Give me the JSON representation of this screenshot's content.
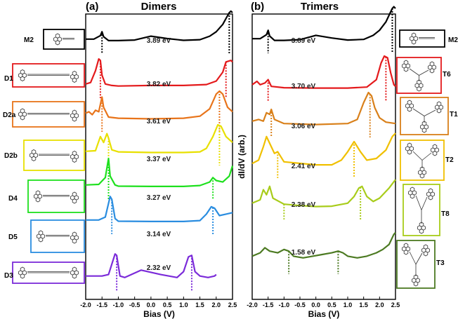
{
  "chart_data": [
    {
      "type": "line",
      "panel": "(a)",
      "title": "Dimers",
      "xlabel": "Bias (V)",
      "ylabel": "",
      "xlim": [
        -2.0,
        2.5
      ],
      "xticks": [
        "-2.0",
        "-1.5",
        "-1.0",
        "-0.5",
        "0.0",
        "0.5",
        "1.0",
        "1.5",
        "2.0",
        "2.5"
      ],
      "series": [
        {
          "name": "M2",
          "color": "#000000",
          "gap": "3.89 eV",
          "vbm": -1.5,
          "cbm": 2.4,
          "x": [
            -2.0,
            -1.75,
            -1.55,
            -1.5,
            -1.45,
            -1.3,
            -1.0,
            -0.5,
            0.0,
            0.5,
            1.0,
            1.5,
            1.8,
            2.0,
            2.2,
            2.3,
            2.4,
            2.45,
            2.5
          ],
          "y": [
            0.1,
            0.1,
            0.22,
            0.35,
            0.18,
            0.05,
            0.05,
            0.07,
            0.2,
            0.12,
            0.06,
            0.08,
            0.2,
            0.35,
            0.6,
            0.8,
            1.0,
            1.05,
            1.0
          ]
        },
        {
          "name": "D1",
          "color": "#e41a1c",
          "gap": "3.82 eV",
          "vbm": -1.55,
          "cbm": 2.3,
          "x": [
            -2.0,
            -1.85,
            -1.7,
            -1.6,
            -1.55,
            -1.5,
            -1.4,
            -1.2,
            -1.0,
            0.0,
            1.0,
            1.7,
            2.0,
            2.2,
            2.3,
            2.45,
            2.5
          ],
          "y": [
            0.1,
            0.15,
            0.55,
            0.95,
            0.9,
            0.4,
            0.1,
            0.05,
            0.03,
            0.05,
            0.05,
            0.08,
            0.2,
            0.5,
            0.85,
            0.9,
            0.85
          ]
        },
        {
          "name": "D2a",
          "color": "#e8741a",
          "gap": "3.61 eV",
          "vbm": -1.5,
          "cbm": 2.1,
          "x": [
            -2.0,
            -1.9,
            -1.8,
            -1.7,
            -1.6,
            -1.5,
            -1.45,
            -1.3,
            -1.0,
            0.0,
            1.0,
            1.5,
            1.8,
            2.0,
            2.1,
            2.2,
            2.35,
            2.5
          ],
          "y": [
            0.25,
            0.3,
            0.2,
            0.35,
            0.3,
            0.8,
            0.45,
            0.12,
            0.08,
            0.06,
            0.08,
            0.15,
            0.4,
            0.9,
            1.0,
            0.9,
            0.45,
            0.3
          ]
        },
        {
          "name": "D2b",
          "color": "#e8e000",
          "gap": "3.37 eV",
          "vbm": -1.3,
          "cbm": 2.1,
          "x": [
            -2.0,
            -1.7,
            -1.55,
            -1.45,
            -1.35,
            -1.3,
            -1.2,
            -1.0,
            0.0,
            1.0,
            1.5,
            1.7,
            1.9,
            2.05,
            2.15,
            2.3,
            2.5
          ],
          "y": [
            0.1,
            0.12,
            0.6,
            0.4,
            0.7,
            0.55,
            0.15,
            0.08,
            0.06,
            0.06,
            0.08,
            0.2,
            0.6,
            1.0,
            0.95,
            0.6,
            0.4
          ]
        },
        {
          "name": "D4",
          "color": "#1ee01e",
          "gap": "3.27 eV",
          "vbm": -1.3,
          "cbm": 1.9,
          "x": [
            -2.0,
            -1.6,
            -1.4,
            -1.3,
            -1.25,
            -1.1,
            -1.0,
            0.0,
            1.0,
            1.5,
            1.8,
            1.9,
            2.0,
            2.2,
            2.4,
            2.5
          ],
          "y": [
            0.1,
            0.12,
            0.35,
            1.0,
            0.4,
            0.1,
            0.06,
            0.05,
            0.05,
            0.08,
            0.2,
            0.35,
            0.25,
            0.2,
            0.4,
            0.75
          ]
        },
        {
          "name": "D5",
          "color": "#2a8de0",
          "gap": "3.14 eV",
          "vbm": -1.2,
          "cbm": 1.9,
          "x": [
            -2.0,
            -1.6,
            -1.4,
            -1.25,
            -1.2,
            -1.1,
            -1.0,
            0.0,
            1.0,
            1.5,
            1.7,
            1.85,
            1.95,
            2.1,
            2.3,
            2.5
          ],
          "y": [
            0.1,
            0.1,
            0.2,
            0.9,
            0.8,
            0.15,
            0.06,
            0.05,
            0.05,
            0.08,
            0.3,
            0.55,
            0.5,
            0.25,
            0.3,
            0.35
          ]
        },
        {
          "name": "D3",
          "color": "#7b2bd9",
          "gap": "2.32 eV",
          "vbm": -1.05,
          "cbm": 1.25,
          "x": [
            -2.0,
            -1.5,
            -1.3,
            -1.1,
            -1.05,
            -0.95,
            -0.8,
            -0.3,
            0.3,
            0.8,
            1.0,
            1.15,
            1.25,
            1.35,
            1.5,
            1.75,
            1.95,
            2.0
          ],
          "y": [
            0.15,
            0.15,
            0.2,
            0.9,
            0.85,
            0.15,
            0.1,
            0.35,
            0.2,
            0.1,
            0.3,
            0.8,
            0.85,
            0.3,
            0.15,
            0.1,
            0.15,
            0.2
          ]
        }
      ]
    },
    {
      "type": "line",
      "panel": "(b)",
      "title": "Trimers",
      "xlabel": "Bias (V)",
      "ylabel": "dI/dV (arb.)",
      "xlim": [
        -2.0,
        2.5
      ],
      "xticks": [
        "-2.0",
        "-1.5",
        "-1.0",
        "-0.5",
        "0.0",
        "0.5",
        "1.0",
        "1.5",
        "2.0",
        "2.5"
      ],
      "series": [
        {
          "name": "M2",
          "color": "#000000",
          "gap": "3.89 eV",
          "vbm": -1.5,
          "cbm": 2.4,
          "x": [
            -2.0,
            -1.75,
            -1.55,
            -1.5,
            -1.45,
            -1.3,
            -1.0,
            -0.5,
            0.0,
            0.5,
            1.0,
            1.5,
            1.8,
            2.0,
            2.2,
            2.3,
            2.4,
            2.45,
            2.5
          ],
          "y": [
            0.1,
            0.1,
            0.22,
            0.35,
            0.18,
            0.05,
            0.05,
            0.07,
            0.2,
            0.12,
            0.06,
            0.08,
            0.2,
            0.35,
            0.6,
            0.8,
            1.0,
            1.05,
            1.0
          ]
        },
        {
          "name": "T6",
          "color": "#e41a1c",
          "gap": "3.70 eV",
          "vbm": -1.5,
          "cbm": 2.2,
          "x": [
            -2.0,
            -1.85,
            -1.75,
            -1.6,
            -1.5,
            -1.4,
            -1.0,
            0.0,
            1.0,
            1.6,
            1.9,
            2.05,
            2.15,
            2.25,
            2.35,
            2.45,
            2.5
          ],
          "y": [
            0.15,
            0.25,
            0.15,
            0.2,
            0.3,
            0.1,
            0.06,
            0.05,
            0.05,
            0.08,
            0.3,
            0.8,
            1.0,
            0.95,
            0.5,
            0.15,
            0.1
          ]
        },
        {
          "name": "T1",
          "color": "#d9801a",
          "gap": "3.06 eV",
          "vbm": -1.4,
          "cbm": 1.7,
          "x": [
            -2.0,
            -1.8,
            -1.65,
            -1.55,
            -1.45,
            -1.4,
            -1.3,
            -1.0,
            0.0,
            1.0,
            1.3,
            1.5,
            1.65,
            1.75,
            1.85,
            2.0,
            2.2,
            2.5
          ],
          "y": [
            0.15,
            0.2,
            0.15,
            0.4,
            0.35,
            0.5,
            0.2,
            0.08,
            0.05,
            0.08,
            0.2,
            0.7,
            1.0,
            0.9,
            0.55,
            0.25,
            0.12,
            0.08
          ]
        },
        {
          "name": "T2",
          "color": "#f0c000",
          "gap": "2.41 eV",
          "vbm": -1.2,
          "cbm": 1.2,
          "x": [
            -2.0,
            -1.8,
            -1.65,
            -1.55,
            -1.45,
            -1.3,
            -1.2,
            -1.0,
            0.0,
            0.5,
            0.8,
            1.0,
            1.2,
            1.4,
            1.6,
            1.9,
            2.2,
            2.4,
            2.5
          ],
          "y": [
            0.1,
            0.2,
            0.6,
            0.9,
            0.7,
            0.4,
            0.45,
            0.15,
            0.06,
            0.06,
            0.2,
            0.45,
            0.75,
            0.45,
            0.2,
            0.25,
            0.5,
            0.9,
            1.0
          ]
        },
        {
          "name": "T8",
          "color": "#a8cc1a",
          "gap": "2.38 eV",
          "vbm": -1.0,
          "cbm": 1.4,
          "x": [
            -2.0,
            -1.75,
            -1.65,
            -1.55,
            -1.45,
            -1.35,
            -1.0,
            -0.5,
            0.0,
            0.5,
            1.0,
            1.2,
            1.35,
            1.45,
            1.6,
            1.8,
            2.0,
            2.3,
            2.5
          ],
          "y": [
            0.15,
            0.25,
            0.55,
            0.4,
            0.65,
            0.3,
            0.12,
            0.08,
            0.05,
            0.06,
            0.15,
            0.35,
            0.6,
            0.65,
            0.35,
            0.2,
            0.3,
            0.6,
            0.85
          ]
        },
        {
          "name": "T3",
          "color": "#4c7a22",
          "gap": "1.58 eV",
          "vbm": -0.85,
          "cbm": 0.7,
          "x": [
            -2.0,
            -1.75,
            -1.6,
            -1.45,
            -1.2,
            -1.0,
            -0.85,
            -0.7,
            -0.4,
            -0.1,
            0.2,
            0.5,
            0.7,
            0.85,
            1.0,
            1.3,
            1.6,
            1.9,
            2.1,
            2.3,
            2.45,
            2.5
          ],
          "y": [
            0.2,
            0.3,
            0.45,
            0.35,
            0.3,
            0.4,
            0.35,
            0.2,
            0.15,
            0.2,
            0.25,
            0.3,
            0.35,
            0.3,
            0.2,
            0.15,
            0.2,
            0.3,
            0.4,
            0.55,
            0.85,
            0.9
          ]
        }
      ]
    }
  ],
  "molecule_icons": {
    "left": [
      {
        "name": "M2",
        "color": "#000000"
      },
      {
        "name": "D1",
        "color": "#e41a1c"
      },
      {
        "name": "D2a",
        "color": "#e8741a"
      },
      {
        "name": "D2b",
        "color": "#e8e000"
      },
      {
        "name": "D4",
        "color": "#1ee01e"
      },
      {
        "name": "D5",
        "color": "#2a8de0"
      },
      {
        "name": "D3",
        "color": "#7b2bd9"
      }
    ],
    "right": [
      {
        "name": "M2",
        "color": "#000000"
      },
      {
        "name": "T6",
        "color": "#e41a1c"
      },
      {
        "name": "T1",
        "color": "#d9801a"
      },
      {
        "name": "T2",
        "color": "#f0c000"
      },
      {
        "name": "T8",
        "color": "#a8cc1a"
      },
      {
        "name": "T3",
        "color": "#4c7a22"
      }
    ]
  }
}
